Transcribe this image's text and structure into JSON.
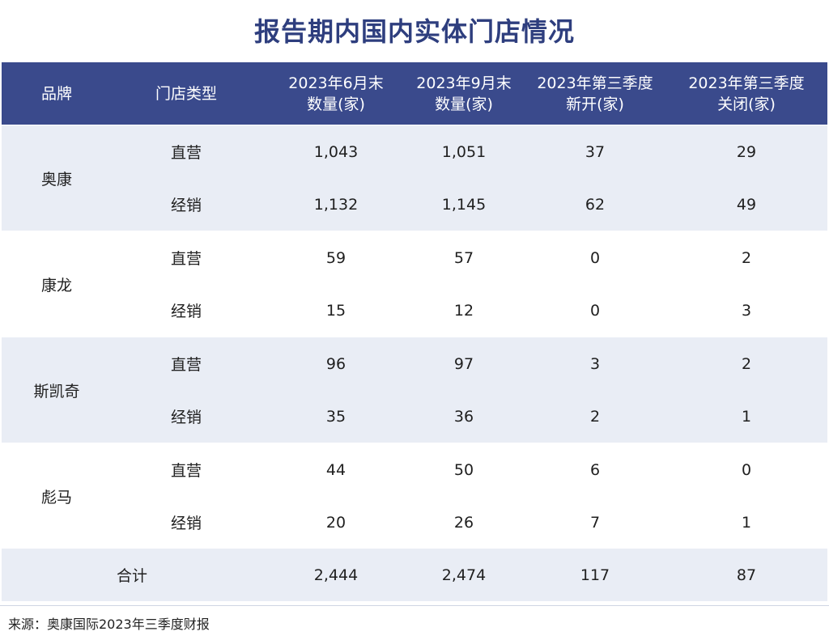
{
  "title": "报告期内国内实体门店情况",
  "headers": {
    "brand": "品牌",
    "store_type": "门店类型",
    "jun_line1": "2023年6月末",
    "jun_line2": "数量(家)",
    "sep_line1": "2023年9月末",
    "sep_line2": "数量(家)",
    "new_line1": "2023年第三季度",
    "new_line2": "新开(家)",
    "closed_line1": "2023年第三季度",
    "closed_line2": "关闭(家)"
  },
  "groups": [
    {
      "brand": "奥康",
      "rows": [
        {
          "type": "直营",
          "jun": "1,043",
          "sep": "1,051",
          "new": "37",
          "closed": "29"
        },
        {
          "type": "经销",
          "jun": "1,132",
          "sep": "1,145",
          "new": "62",
          "closed": "49"
        }
      ]
    },
    {
      "brand": "康龙",
      "rows": [
        {
          "type": "直营",
          "jun": "59",
          "sep": "57",
          "new": "0",
          "closed": "2"
        },
        {
          "type": "经销",
          "jun": "15",
          "sep": "12",
          "new": "0",
          "closed": "3"
        }
      ]
    },
    {
      "brand": "斯凯奇",
      "rows": [
        {
          "type": "直营",
          "jun": "96",
          "sep": "97",
          "new": "3",
          "closed": "2"
        },
        {
          "type": "经销",
          "jun": "35",
          "sep": "36",
          "new": "2",
          "closed": "1"
        }
      ]
    },
    {
      "brand": "彪马",
      "rows": [
        {
          "type": "直营",
          "jun": "44",
          "sep": "50",
          "new": "6",
          "closed": "0"
        },
        {
          "type": "经销",
          "jun": "20",
          "sep": "26",
          "new": "7",
          "closed": "1"
        }
      ]
    }
  ],
  "total": {
    "label": "合计",
    "jun": "2,444",
    "sep": "2,474",
    "new": "117",
    "closed": "87"
  },
  "source": "来源：奥康国际2023年三季度财报",
  "colors": {
    "header_bg": "#3a4a8c",
    "title": "#2e3e7e",
    "shade": "#e9edf5"
  }
}
